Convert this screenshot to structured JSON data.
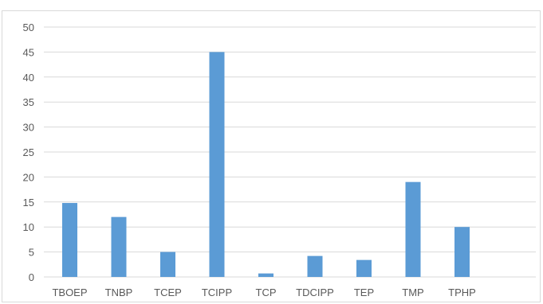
{
  "chart_data": {
    "type": "bar",
    "title": "",
    "xlabel": "",
    "ylabel": "",
    "categories": [
      "TBOEP",
      "TNBP",
      "TCEP",
      "TCIPP",
      "TCP",
      "TDCIPP",
      "TEP",
      "TMP",
      "TPHP"
    ],
    "values": [
      14.8,
      12,
      5,
      45,
      0.7,
      4.2,
      3.4,
      19,
      10
    ],
    "ylim": [
      0,
      50
    ],
    "yticks": [
      0,
      5,
      10,
      15,
      20,
      25,
      30,
      35,
      40,
      45,
      50
    ],
    "grid": true,
    "legend": "none",
    "bar_color": "#5b9bd5",
    "grid_color": "#d9d9d9"
  }
}
